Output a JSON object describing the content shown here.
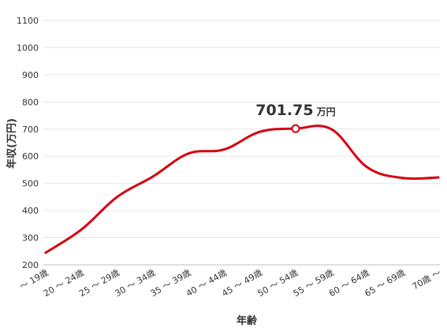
{
  "chart_data": {
    "type": "line",
    "xlabel": "年齢",
    "ylabel": "年収(万円)",
    "ylim": [
      200,
      1100
    ],
    "yticks": [
      200,
      300,
      400,
      500,
      600,
      700,
      800,
      900,
      1000,
      1100
    ],
    "grid": true,
    "categories": [
      "～ 19歳",
      "20 ～ 24歳",
      "25 ～ 29歳",
      "30 ～ 34歳",
      "35 ～ 39歳",
      "40 ～ 44歳",
      "45 ～ 49歳",
      "50 ～ 54歳",
      "55 ～ 59歳",
      "60 ～ 64歳",
      "65 ～ 69歳",
      "70歳 ～"
    ],
    "series": [
      {
        "color": "#d7000f",
        "values": [
          245,
          330,
          450,
          525,
          610,
          625,
          690,
          701.75,
          700,
          560,
          520,
          522
        ]
      }
    ],
    "annotation": {
      "category_index": 7,
      "value": 701.75,
      "value_text": "701.75",
      "unit_text": "万円"
    }
  }
}
